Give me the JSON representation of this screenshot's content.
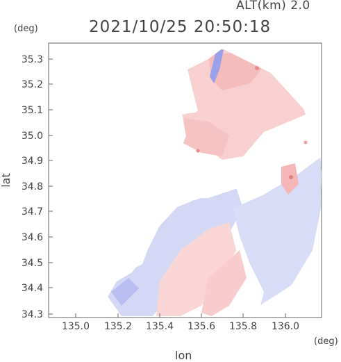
{
  "header": {
    "altitude_label": "ALT(km) 2.0",
    "datetime_label": "2021/10/25 20:50:18"
  },
  "axes": {
    "y_unit": "(deg)",
    "x_unit": "(deg)",
    "x_title": "lon",
    "y_title": "lat",
    "xlim": [
      134.87,
      136.18
    ],
    "ylim": [
      34.28,
      35.35
    ],
    "x_ticks": [
      "135.0",
      "135.2",
      "135.4",
      "135.6",
      "135.8",
      "136.0"
    ],
    "y_ticks": [
      "34.3",
      "34.4",
      "34.5",
      "34.6",
      "34.7",
      "34.8",
      "34.9",
      "35.0",
      "35.1",
      "35.2",
      "35.3"
    ]
  },
  "colors": {
    "positive": "#f6c4c4",
    "positive_strong": "#e88a8a",
    "negative": "#cfd3f3",
    "negative_strong": "#8f95e6",
    "frame": "#666666"
  }
}
